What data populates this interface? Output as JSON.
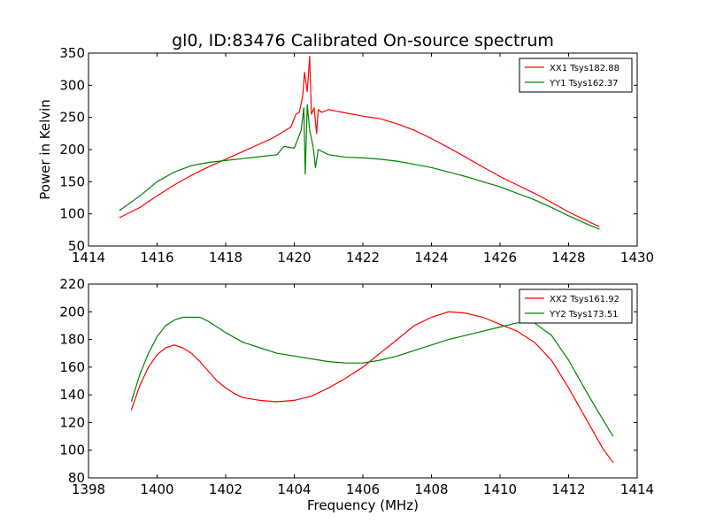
{
  "title": "gl0, ID:83476 Calibrated On-source spectrum",
  "chart_data": [
    {
      "type": "line",
      "ylabel": "Power in Kelvin",
      "xlabel": "",
      "xlim": [
        1414,
        1430
      ],
      "ylim": [
        50,
        350
      ],
      "xticks": [
        1414,
        1416,
        1418,
        1420,
        1422,
        1424,
        1426,
        1428,
        1430
      ],
      "yticks": [
        50,
        100,
        150,
        200,
        250,
        300,
        350
      ],
      "legend_position": "top-right",
      "series": [
        {
          "name": "XX1 Tsys182.88",
          "color": "#ff0000",
          "x": [
            1414.9,
            1415.5,
            1416.0,
            1416.5,
            1417.0,
            1417.5,
            1418.0,
            1418.5,
            1419.0,
            1419.3,
            1419.6,
            1419.9,
            1420.05,
            1420.15,
            1420.25,
            1420.3,
            1420.38,
            1420.45,
            1420.5,
            1420.58,
            1420.65,
            1420.7,
            1420.8,
            1421.0,
            1421.5,
            1422.0,
            1422.5,
            1423.0,
            1423.5,
            1424.0,
            1424.5,
            1425.0,
            1425.5,
            1426.0,
            1426.5,
            1427.0,
            1427.5,
            1428.0,
            1428.5,
            1428.9
          ],
          "y": [
            94,
            110,
            128,
            145,
            160,
            173,
            185,
            197,
            209,
            216,
            225,
            235,
            255,
            258,
            285,
            320,
            290,
            345,
            255,
            265,
            225,
            262,
            258,
            262,
            257,
            252,
            248,
            240,
            230,
            217,
            203,
            188,
            173,
            158,
            145,
            132,
            118,
            103,
            90,
            80
          ]
        },
        {
          "name": "YY1 Tsys162.37",
          "color": "#008000",
          "x": [
            1414.9,
            1415.5,
            1416.0,
            1416.5,
            1417.0,
            1417.5,
            1418.0,
            1418.5,
            1419.0,
            1419.5,
            1419.7,
            1420.0,
            1420.2,
            1420.28,
            1420.32,
            1420.38,
            1420.45,
            1420.55,
            1420.62,
            1420.7,
            1421.0,
            1421.5,
            1422.0,
            1422.5,
            1423.0,
            1423.5,
            1424.0,
            1424.5,
            1425.0,
            1425.5,
            1426.0,
            1426.5,
            1427.0,
            1427.5,
            1428.0,
            1428.5,
            1428.9
          ],
          "y": [
            105,
            128,
            150,
            165,
            175,
            180,
            183,
            186,
            189,
            192,
            205,
            202,
            230,
            265,
            162,
            270,
            230,
            205,
            172,
            200,
            192,
            188,
            187,
            185,
            182,
            177,
            172,
            165,
            158,
            150,
            142,
            132,
            122,
            110,
            97,
            85,
            76
          ]
        }
      ]
    },
    {
      "type": "line",
      "ylabel": "",
      "xlabel": "Frequency (MHz)",
      "xlim": [
        1398,
        1414
      ],
      "ylim": [
        80,
        220
      ],
      "xticks": [
        1398,
        1400,
        1402,
        1404,
        1406,
        1408,
        1410,
        1412,
        1414
      ],
      "yticks": [
        80,
        100,
        120,
        140,
        160,
        180,
        200,
        220
      ],
      "legend_position": "top-right",
      "series": [
        {
          "name": "XX2 Tsys161.92",
          "color": "#ff0000",
          "x": [
            1399.25,
            1399.5,
            1399.75,
            1400.0,
            1400.25,
            1400.5,
            1400.75,
            1401.0,
            1401.25,
            1401.5,
            1401.75,
            1402.0,
            1402.25,
            1402.5,
            1402.75,
            1403.0,
            1403.5,
            1404.0,
            1404.5,
            1405.0,
            1405.5,
            1406.0,
            1406.5,
            1407.0,
            1407.5,
            1408.0,
            1408.5,
            1409.0,
            1409.5,
            1410.0,
            1410.5,
            1411.0,
            1411.5,
            1412.0,
            1412.5,
            1413.0,
            1413.3
          ],
          "y": [
            129,
            147,
            160,
            169,
            174,
            176,
            174,
            170,
            164,
            157,
            150,
            145,
            141,
            138,
            137,
            136,
            135,
            136,
            139,
            145,
            152,
            160,
            170,
            180,
            190,
            196,
            200,
            199,
            196,
            191,
            186,
            178,
            165,
            145,
            123,
            101,
            91
          ]
        },
        {
          "name": "YY2 Tsys173.51",
          "color": "#008000",
          "x": [
            1399.25,
            1399.5,
            1399.75,
            1400.0,
            1400.25,
            1400.5,
            1400.75,
            1401.0,
            1401.25,
            1401.5,
            1401.75,
            1402.0,
            1402.5,
            1403.0,
            1403.5,
            1404.0,
            1404.5,
            1405.0,
            1405.5,
            1406.0,
            1406.5,
            1407.0,
            1407.5,
            1408.0,
            1408.5,
            1409.0,
            1409.5,
            1410.0,
            1410.5,
            1411.0,
            1411.5,
            1412.0,
            1412.5,
            1413.0,
            1413.3
          ],
          "y": [
            135,
            155,
            170,
            182,
            190,
            194,
            196,
            196,
            196,
            193,
            189,
            185,
            178,
            174,
            170,
            168,
            166,
            164,
            163,
            163,
            165,
            168,
            172,
            176,
            180,
            183,
            186,
            189,
            192,
            192,
            183,
            165,
            143,
            122,
            110
          ]
        }
      ]
    }
  ]
}
